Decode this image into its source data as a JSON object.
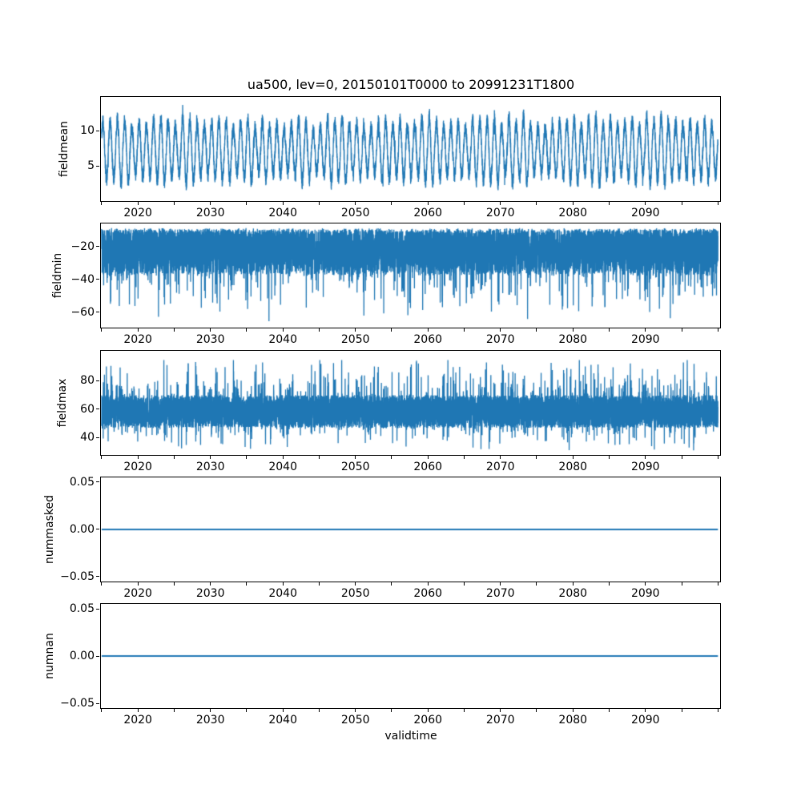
{
  "figure": {
    "title": "ua500, lev=0, 20150101T0000 to 20991231T1800",
    "xlabel": "validtime",
    "background": "#ffffff",
    "line_color": "#1f77b4",
    "axis_color": "#000000"
  },
  "chart_data": {
    "type": "line",
    "title": "ua500, lev=0, 20150101T0000 to 20991231T1800",
    "xlabel": "validtime",
    "grid": false,
    "legend": null,
    "x_range_data": [
      2015.0,
      2100.0
    ],
    "xlim": [
      2014.9,
      2100.3
    ],
    "xticks_labeled": [
      2020,
      2030,
      2040,
      2050,
      2060,
      2070,
      2080,
      2090
    ],
    "xtick_label_strings": [
      "2020",
      "2030",
      "2040",
      "2050",
      "2060",
      "2070",
      "2080",
      "2090"
    ],
    "xticks_minor_step": 5,
    "xticks_minor_range": [
      2015,
      2100
    ],
    "subplots": [
      {
        "name": "fieldmean",
        "ylabel": "fieldmean",
        "ylim": [
          0.0,
          14.8
        ],
        "ytick_values": [
          10,
          5
        ],
        "ytick_labels": [
          "10",
          "5"
        ],
        "summary": {
          "pattern": "annual cycle with noise",
          "mean": 7.2,
          "annual_amplitude": 3.9,
          "observed_min": 0.7,
          "observed_max": 14.1
        },
        "gen": {
          "kind": "annual",
          "seed": 42,
          "n": 7600,
          "mean": 7.2,
          "amp": 3.9,
          "amp_jitter": 0.45,
          "noise": 1.15,
          "spike_prob": 0.02,
          "spike_amp": 1.7,
          "phase": 0.5,
          "clamp": [
            0.7,
            14.1
          ]
        }
      },
      {
        "name": "fieldmin",
        "ylabel": "fieldmin",
        "ylim": [
          -69.5,
          -6.0
        ],
        "ytick_values": [
          -20,
          -40,
          -60
        ],
        "ytick_labels": [
          "−20",
          "−40",
          "−60"
        ],
        "summary": {
          "pattern": "dense noise band with downward spikes",
          "band_top": -9,
          "band_bottom": -38,
          "observed_min": -66.5,
          "observed_max": -8.5
        },
        "gen": {
          "kind": "band_down",
          "seed": 7,
          "n": 9500,
          "top": 8.8,
          "top_jitter": 2.0,
          "band": 27.5,
          "power": 1.35,
          "spike_prob": 0.065,
          "spike_min": 3,
          "spike_max": 28,
          "clamp": [
            -66.8,
            -8.3
          ]
        }
      },
      {
        "name": "fieldmax",
        "ylabel": "fieldmax",
        "ylim": [
          28.0,
          101.0
        ],
        "ytick_values": [
          80,
          60,
          40
        ],
        "ytick_labels": [
          "80",
          "60",
          "40"
        ],
        "summary": {
          "pattern": "dense noise band with spikes both directions",
          "band_low": 47,
          "band_high": 70,
          "observed_min": 30.5,
          "observed_max": 94.5
        },
        "gen": {
          "kind": "band_both",
          "seed": 19,
          "n": 9500,
          "center": 58.5,
          "half": 11.5,
          "up_prob": 0.055,
          "up_min": 4,
          "up_max": 27,
          "down_prob": 0.05,
          "down_min": 3,
          "down_max": 17,
          "clamp": [
            30.2,
            94.6
          ]
        }
      },
      {
        "name": "nummasked",
        "ylabel": "nummasked",
        "ylim": [
          -0.055,
          0.055
        ],
        "ytick_values": [
          0.05,
          0.0,
          -0.05
        ],
        "ytick_labels": [
          "0.05",
          "0.00",
          "−0.05"
        ],
        "summary": {
          "pattern": "constant zero",
          "value": 0.0
        },
        "gen": {
          "kind": "flat",
          "value": 0.0
        }
      },
      {
        "name": "numnan",
        "ylabel": "numnan",
        "ylim": [
          -0.055,
          0.055
        ],
        "ytick_values": [
          0.05,
          0.0,
          -0.05
        ],
        "ytick_labels": [
          "0.05",
          "0.00",
          "−0.05"
        ],
        "summary": {
          "pattern": "constant zero",
          "value": 0.0
        },
        "gen": {
          "kind": "flat",
          "value": 0.0
        }
      }
    ]
  }
}
